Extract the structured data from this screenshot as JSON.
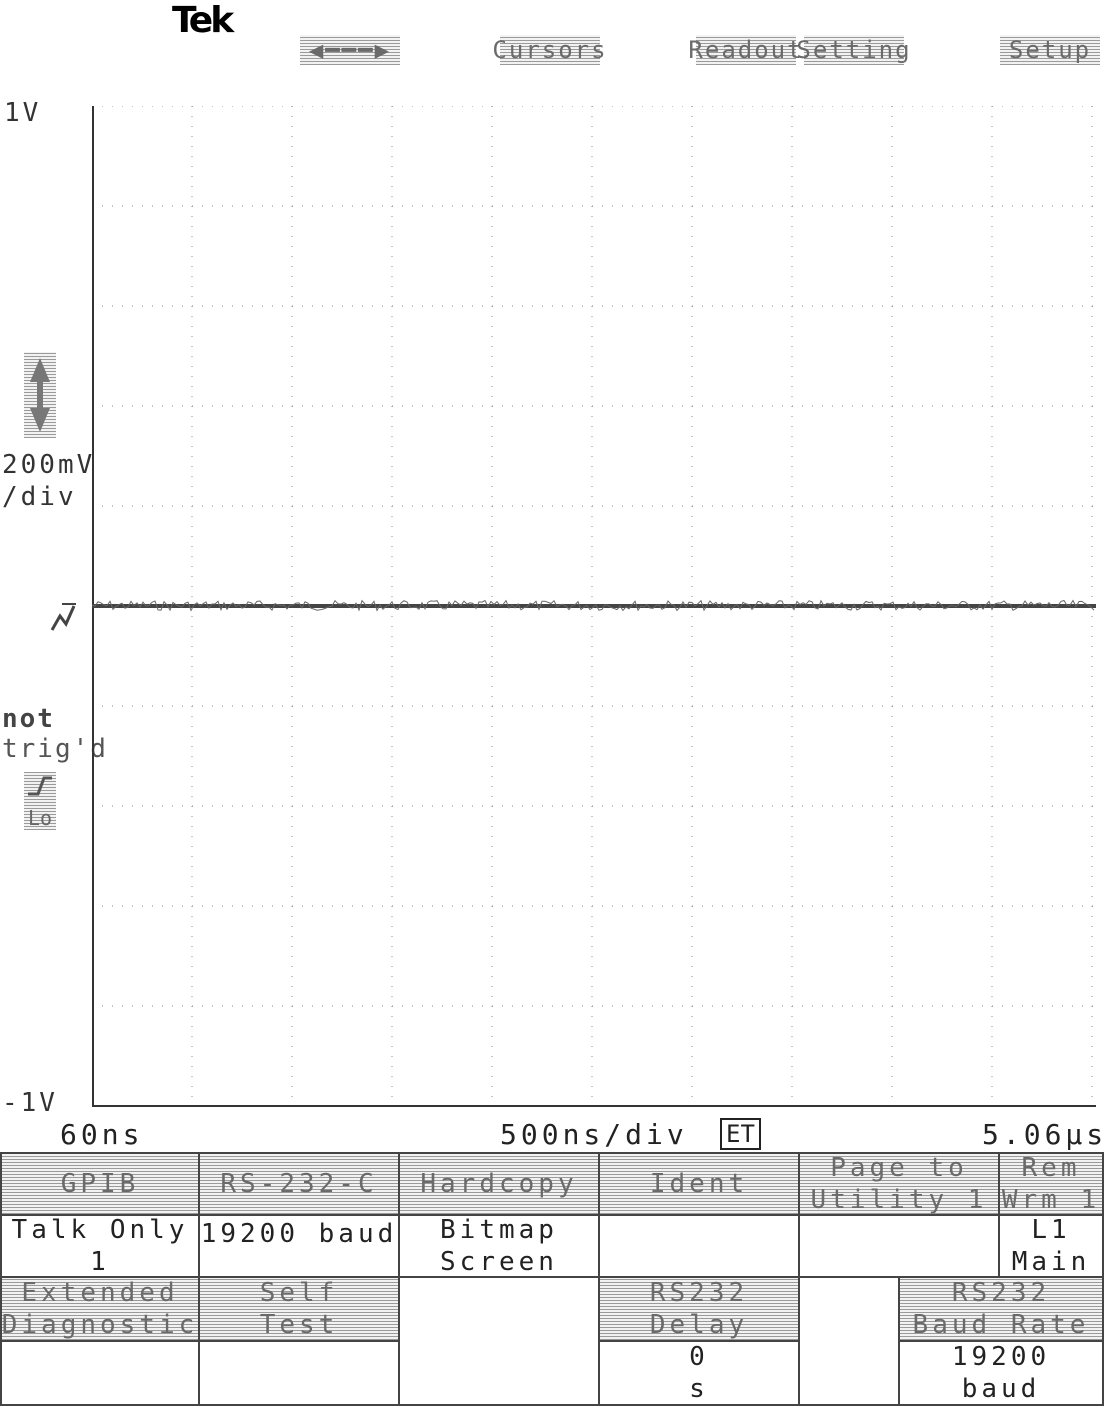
{
  "brand": "Tek",
  "top_menu": {
    "arrows_label": "◀━━━▶",
    "cursors": "Cursors",
    "readout": "Readout",
    "setting": "Setting",
    "setup": "Setup"
  },
  "scope": {
    "top_volt": "1V",
    "bottom_volt": "-1V",
    "volts_per_div": "200mV",
    "per_div_suffix": "/div",
    "trigger_status": "not",
    "trigger_status_2": "trig'd",
    "trigger_marker": "T",
    "trigger_slope_label": "Lo",
    "start_time": "60ns",
    "time_per_div": "500ns/div",
    "acq_mode": "ET",
    "end_time": "5.06µs"
  },
  "menu_row1": [
    {
      "header": "GPIB",
      "value1": "Talk Only",
      "value2": "1"
    },
    {
      "header": "RS-232-C",
      "value1": "19200 baud",
      "value2": ""
    },
    {
      "header": "Hardcopy",
      "value1": "Bitmap",
      "value2": "Screen"
    },
    {
      "header": "Ident",
      "value1": "",
      "value2": ""
    },
    {
      "header": "Page to",
      "header2": "Utility 1",
      "value1": "",
      "value2": ""
    },
    {
      "header": "Rem",
      "header2": "Wrm 1",
      "value1": "L1",
      "value2": "Main"
    }
  ],
  "menu_row2": [
    {
      "header": "Extended",
      "header2": "Diagnostic",
      "value1": "",
      "value2": ""
    },
    {
      "header": "Self",
      "header2": "Test",
      "value1": "",
      "value2": ""
    },
    {
      "header": "",
      "header2": "",
      "value1": "",
      "value2": ""
    },
    {
      "header": "RS232",
      "header2": "Delay",
      "value1": "0",
      "value2": "s"
    },
    {
      "header": "",
      "header2": "",
      "value1": "",
      "value2": ""
    },
    {
      "header": "RS232",
      "header2": "Baud Rate",
      "value1": "19200",
      "value2": "baud"
    }
  ]
}
